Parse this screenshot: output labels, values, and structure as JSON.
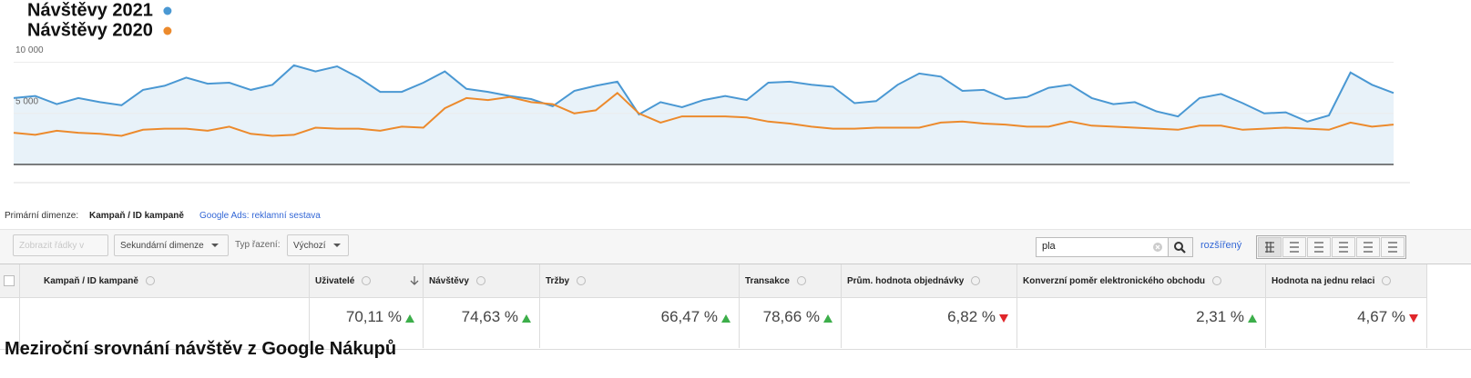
{
  "chart_data": {
    "type": "line",
    "series": [
      {
        "name": "Návštěvy 2021",
        "color": "#4a98d3",
        "values": [
          6500,
          6700,
          5900,
          6500,
          6100,
          5800,
          7300,
          7700,
          8500,
          7900,
          8000,
          7300,
          7800,
          9700,
          9100,
          9600,
          8500,
          7100,
          7100,
          8000,
          9100,
          7400,
          7100,
          6700,
          6400,
          5700,
          7200,
          7700,
          8100,
          4900,
          6100,
          5600,
          6300,
          6700,
          6300,
          8000,
          8100,
          7800,
          7600,
          6000,
          6200,
          7800,
          8900,
          8600,
          7200,
          7300,
          6400,
          6600,
          7500,
          7800,
          6500,
          5900,
          6100,
          5200,
          4700,
          6500,
          6900,
          6000,
          5000,
          5100,
          4200,
          4800,
          9000,
          7800,
          7000
        ]
      },
      {
        "name": "Návštěvy 2020",
        "color": "#ec8a2c",
        "values": [
          3100,
          2900,
          3300,
          3100,
          3000,
          2800,
          3400,
          3500,
          3500,
          3300,
          3700,
          3000,
          2800,
          2900,
          3600,
          3500,
          3500,
          3300,
          3700,
          3600,
          5500,
          6500,
          6300,
          6600,
          6100,
          5900,
          5000,
          5300,
          7000,
          5000,
          4100,
          4700,
          4700,
          4700,
          4600,
          4200,
          4000,
          3700,
          3500,
          3500,
          3600,
          3600,
          3600,
          4100,
          4200,
          4000,
          3900,
          3700,
          3700,
          4200,
          3800,
          3700,
          3600,
          3500,
          3400,
          3800,
          3800,
          3400,
          3500,
          3600,
          3500,
          3400,
          4100,
          3700,
          3900
        ]
      }
    ],
    "ylim": [
      0,
      12000
    ],
    "yticks": [
      {
        "value": 5000,
        "label": "5 000"
      },
      {
        "value": 10000,
        "label": "10 000"
      }
    ],
    "grid": true,
    "area": true,
    "legend": "top-left"
  },
  "dimension_bar": {
    "label": "Primární dimenze:",
    "active": "Kampaň / ID kampaně",
    "link": "Google Ads: reklamní sestava"
  },
  "toolbar": {
    "plot_rows": "Zobrazit řádky v grafu",
    "secondary": "Sekundární dimenze",
    "sort_label": "Typ řazení:",
    "sort_value": "Výchozí",
    "search": "pla",
    "advanced": "rozšířený"
  },
  "table": {
    "columns": [
      "Kampaň / ID kampaně",
      "Uživatelé",
      "Návštěvy",
      "Tržby",
      "Transakce",
      "Prům. hodnota objednávky",
      "Konverzní poměr elektronického obchodu",
      "Hodnota na jednu relaci"
    ],
    "row": [
      {
        "value": "70,11 %",
        "trend": "up"
      },
      {
        "value": "74,63 %",
        "trend": "up"
      },
      {
        "value": "66,47 %",
        "trend": "up"
      },
      {
        "value": "78,66 %",
        "trend": "up"
      },
      {
        "value": "6,82 %",
        "trend": "down"
      },
      {
        "value": "2,31 %",
        "trend": "up"
      },
      {
        "value": "4,67 %",
        "trend": "down"
      }
    ]
  },
  "caption": "Meziroční srovnání návštěv z Google Nákupů"
}
